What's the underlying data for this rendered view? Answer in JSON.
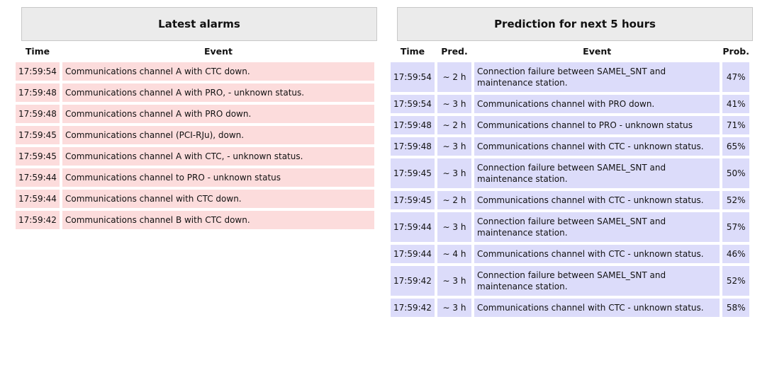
{
  "alarms": {
    "title": "Latest alarms",
    "headers": {
      "time": "Time",
      "event": "Event"
    },
    "rows": [
      {
        "time": "17:59:54",
        "event": "Communications channel A with CTC down."
      },
      {
        "time": "17:59:48",
        "event": "Communications channel A with PRO, - unknown status."
      },
      {
        "time": "17:59:48",
        "event": "Communications channel A with PRO down."
      },
      {
        "time": "17:59:45",
        "event": "Communications channel (PCI-RJu), down."
      },
      {
        "time": "17:59:45",
        "event": "Communications channel A with CTC, - unknown status."
      },
      {
        "time": "17:59:44",
        "event": "Communications channel to PRO - unknown status"
      },
      {
        "time": "17:59:44",
        "event": "Communications channel with CTC down."
      },
      {
        "time": "17:59:42",
        "event": "Communications channel B with CTC down."
      }
    ]
  },
  "prediction": {
    "title": "Prediction for next 5 hours",
    "headers": {
      "time": "Time",
      "pred": "Pred.",
      "event": "Event",
      "prob": "Prob."
    },
    "rows": [
      {
        "time": "17:59:54",
        "pred": "∼ 2 h",
        "event": "Connection failure between SAMEL_SNT and maintenance station.",
        "prob": "47%"
      },
      {
        "time": "17:59:54",
        "pred": "∼ 3 h",
        "event": "Communications channel with PRO down.",
        "prob": "41%"
      },
      {
        "time": "17:59:48",
        "pred": "∼ 2 h",
        "event": "Communications channel to PRO - unknown status",
        "prob": "71%"
      },
      {
        "time": "17:59:48",
        "pred": "∼ 3 h",
        "event": "Communications channel with CTC - unknown status.",
        "prob": "65%"
      },
      {
        "time": "17:59:45",
        "pred": "∼ 3 h",
        "event": "Connection failure between SAMEL_SNT and maintenance station.",
        "prob": "50%"
      },
      {
        "time": "17:59:45",
        "pred": "∼ 2 h",
        "event": "Communications channel with CTC - unknown status.",
        "prob": "52%"
      },
      {
        "time": "17:59:44",
        "pred": "∼ 3 h",
        "event": "Connection failure between SAMEL_SNT and maintenance station.",
        "prob": "57%"
      },
      {
        "time": "17:59:44",
        "pred": "∼ 4 h",
        "event": "Communications channel with CTC - unknown status.",
        "prob": "46%"
      },
      {
        "time": "17:59:42",
        "pred": "∼ 3 h",
        "event": "Connection failure between SAMEL_SNT and maintenance station.",
        "prob": "52%"
      },
      {
        "time": "17:59:42",
        "pred": "∼ 3 h",
        "event": "Communications channel with CTC - unknown status.",
        "prob": "58%"
      }
    ]
  },
  "colors": {
    "alarm_row": "#fcdcdc",
    "prediction_row": "#dcdcfa",
    "header_bg": "#ebebeb"
  }
}
